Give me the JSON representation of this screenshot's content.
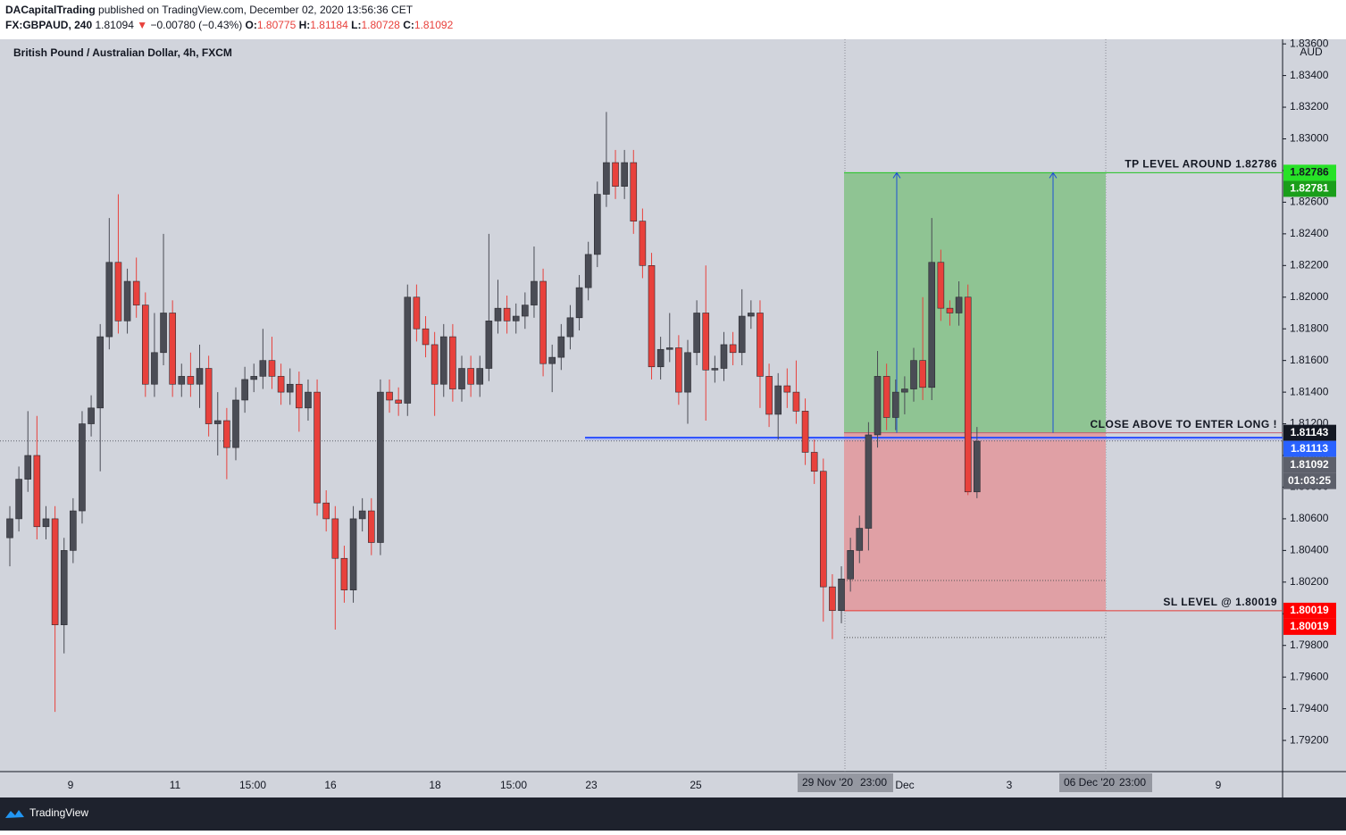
{
  "header": {
    "publisher": "DACapitalTrading",
    "published": "published on TradingView.com, December 02, 2020 13:56:36 CET",
    "symbol": "FX:GBPAUD, 240",
    "last": "1.81094",
    "arrow": "▼",
    "change": "−0.00780 (−0.43%)",
    "o_label": "O:",
    "o": "1.80775",
    "h_label": "H:",
    "h": "1.81184",
    "l_label": "L:",
    "l": "1.80728",
    "c_label": "C:",
    "c": "1.81092"
  },
  "chart_data": {
    "type": "candlestick",
    "title": "British Pound / Australian Dollar, 4h, FXCM",
    "currency": "AUD",
    "up_color": "#4a4c55",
    "down_color": "#e8413c",
    "open": [
      1.8048,
      1.806,
      1.8085,
      1.81,
      1.8055,
      1.806,
      1.7993,
      1.804,
      1.8065,
      1.812,
      1.813,
      1.8175,
      1.8222,
      1.8185,
      1.821,
      1.8195,
      1.8145,
      1.8165,
      1.819,
      1.8145,
      1.815,
      1.8145,
      1.8155,
      1.812,
      1.8122,
      1.8105,
      1.8135,
      1.8148,
      1.815,
      1.816,
      1.815,
      1.814,
      1.8145,
      1.813,
      1.814,
      1.807,
      1.806,
      1.8035,
      1.8015,
      1.806,
      1.8065,
      1.8045,
      1.814,
      1.8135,
      1.8133,
      1.82,
      1.818,
      1.817,
      1.8145,
      1.8175,
      1.8142,
      1.8155,
      1.8145,
      1.8155,
      1.8185,
      1.8193,
      1.8185,
      1.8188,
      1.8195,
      1.821,
      1.8158,
      1.8162,
      1.8175,
      1.8187,
      1.8206,
      1.8227,
      1.8265,
      1.8285,
      1.827,
      1.8285,
      1.8248,
      1.822,
      1.8156,
      1.8167,
      1.8168,
      1.814,
      1.8165,
      1.819,
      1.8154,
      1.8155,
      1.817,
      1.8165,
      1.8188,
      1.819,
      1.815,
      1.8126,
      1.8144,
      1.814,
      1.8128,
      1.8102,
      1.809,
      1.8017,
      1.8002,
      1.8022,
      1.804,
      1.8054,
      1.8113,
      1.815,
      1.8124,
      1.814,
      1.8142,
      1.816,
      1.8143,
      1.8222,
      1.8193,
      1.819,
      1.82,
      1.8077
    ],
    "high": [
      1.8068,
      1.8093,
      1.8128,
      1.8125,
      1.8068,
      1.8068,
      1.8048,
      1.8073,
      1.8128,
      1.8138,
      1.8183,
      1.825,
      1.8265,
      1.8218,
      1.8225,
      1.8203,
      1.819,
      1.824,
      1.8198,
      1.8158,
      1.8165,
      1.817,
      1.8163,
      1.814,
      1.813,
      1.8143,
      1.8156,
      1.8158,
      1.818,
      1.8175,
      1.8158,
      1.8155,
      1.8153,
      1.8148,
      1.8148,
      1.8078,
      1.8068,
      1.8043,
      1.8068,
      1.8073,
      1.8073,
      1.8148,
      1.8148,
      1.8143,
      1.8208,
      1.8208,
      1.8188,
      1.8178,
      1.8183,
      1.8183,
      1.8163,
      1.8163,
      1.8163,
      1.824,
      1.8211,
      1.8201,
      1.8196,
      1.8203,
      1.8232,
      1.8218,
      1.817,
      1.8183,
      1.8195,
      1.8214,
      1.8235,
      1.8273,
      1.8317,
      1.8293,
      1.8293,
      1.8293,
      1.8256,
      1.8228,
      1.8175,
      1.819,
      1.8176,
      1.8173,
      1.8198,
      1.822,
      1.8163,
      1.8178,
      1.8178,
      1.8205,
      1.8198,
      1.8198,
      1.8158,
      1.8152,
      1.8155,
      1.816,
      1.8136,
      1.811,
      1.8098,
      1.8025,
      1.803,
      1.8048,
      1.8062,
      1.8121,
      1.8166,
      1.8158,
      1.8148,
      1.815,
      1.8168,
      1.82,
      1.825,
      1.823,
      1.8198,
      1.821,
      1.8208,
      1.8118
    ],
    "low": [
      1.803,
      1.8052,
      1.8077,
      1.8047,
      1.8047,
      1.7938,
      1.7975,
      1.8032,
      1.8057,
      1.8112,
      1.809,
      1.8167,
      1.8177,
      1.8177,
      1.8187,
      1.8137,
      1.8137,
      1.8157,
      1.8137,
      1.8137,
      1.8137,
      1.813,
      1.8112,
      1.81,
      1.8085,
      1.8097,
      1.8127,
      1.814,
      1.8142,
      1.8142,
      1.8132,
      1.8132,
      1.8115,
      1.8122,
      1.8062,
      1.8052,
      1.799,
      1.8007,
      1.8007,
      1.8052,
      1.8037,
      1.8037,
      1.8127,
      1.8125,
      1.8125,
      1.8172,
      1.8162,
      1.8125,
      1.8137,
      1.8134,
      1.8134,
      1.8137,
      1.8137,
      1.8147,
      1.8177,
      1.8177,
      1.8177,
      1.818,
      1.8187,
      1.815,
      1.814,
      1.8154,
      1.8167,
      1.8179,
      1.8198,
      1.8219,
      1.8257,
      1.8262,
      1.8262,
      1.824,
      1.8212,
      1.8148,
      1.8148,
      1.8159,
      1.8132,
      1.812,
      1.8157,
      1.8122,
      1.8146,
      1.8147,
      1.8157,
      1.8157,
      1.818,
      1.813,
      1.8118,
      1.811,
      1.813,
      1.812,
      1.8094,
      1.8082,
      1.7995,
      1.7984,
      1.7994,
      1.8014,
      1.8032,
      1.804,
      1.8105,
      1.8116,
      1.8116,
      1.8126,
      1.8134,
      1.8135,
      1.8135,
      1.8185,
      1.8182,
      1.8182,
      1.8075,
      1.8073
    ],
    "close": [
      1.806,
      1.8085,
      1.81,
      1.8055,
      1.806,
      1.7993,
      1.804,
      1.8065,
      1.812,
      1.813,
      1.8175,
      1.8222,
      1.8185,
      1.821,
      1.8195,
      1.8145,
      1.8165,
      1.819,
      1.8145,
      1.815,
      1.8145,
      1.8155,
      1.812,
      1.8122,
      1.8105,
      1.8135,
      1.8148,
      1.815,
      1.816,
      1.815,
      1.814,
      1.8145,
      1.813,
      1.814,
      1.807,
      1.806,
      1.8035,
      1.8015,
      1.806,
      1.8065,
      1.8045,
      1.814,
      1.8135,
      1.8133,
      1.82,
      1.818,
      1.817,
      1.8145,
      1.8175,
      1.8142,
      1.8155,
      1.8145,
      1.8155,
      1.8185,
      1.8193,
      1.8185,
      1.8188,
      1.8195,
      1.821,
      1.8158,
      1.8162,
      1.8175,
      1.8187,
      1.8206,
      1.8227,
      1.8265,
      1.8285,
      1.827,
      1.8285,
      1.8248,
      1.822,
      1.8156,
      1.8167,
      1.8168,
      1.814,
      1.8165,
      1.819,
      1.8154,
      1.8155,
      1.817,
      1.8165,
      1.8188,
      1.819,
      1.815,
      1.8126,
      1.8144,
      1.814,
      1.8128,
      1.8102,
      1.809,
      1.8017,
      1.8002,
      1.8022,
      1.804,
      1.8054,
      1.8113,
      1.815,
      1.8124,
      1.814,
      1.8142,
      1.816,
      1.8143,
      1.8222,
      1.8193,
      1.819,
      1.82,
      1.8077,
      1.8109
    ],
    "ylim": [
      1.79003,
      1.83629
    ],
    "yticks": [
      {
        "value": 1.792,
        "label": "1.79200"
      },
      {
        "value": 1.794,
        "label": "1.79400"
      },
      {
        "value": 1.796,
        "label": "1.79600"
      },
      {
        "value": 1.798,
        "label": "1.79800"
      },
      {
        "value": 1.8,
        "label": "1.80000"
      },
      {
        "value": 1.802,
        "label": "1.80200"
      },
      {
        "value": 1.804,
        "label": "1.80400"
      },
      {
        "value": 1.806,
        "label": "1.80600"
      },
      {
        "value": 1.808,
        "label": "1.80800"
      },
      {
        "value": 1.81,
        "label": "1.81000"
      },
      {
        "value": 1.812,
        "label": "1.81200"
      },
      {
        "value": 1.814,
        "label": "1.81400"
      },
      {
        "value": 1.816,
        "label": "1.81600"
      },
      {
        "value": 1.818,
        "label": "1.81800"
      },
      {
        "value": 1.82,
        "label": "1.82000"
      },
      {
        "value": 1.822,
        "label": "1.82200"
      },
      {
        "value": 1.824,
        "label": "1.82400"
      },
      {
        "value": 1.826,
        "label": "1.82600"
      },
      {
        "value": 1.828,
        "label": "1.82800"
      },
      {
        "value": 1.83,
        "label": "1.83000"
      },
      {
        "value": 1.832,
        "label": "1.83200"
      },
      {
        "value": 1.834,
        "label": "1.83400"
      },
      {
        "value": 1.836,
        "label": "1.83600"
      }
    ],
    "xtick_labels": [
      "9",
      "11",
      "15:00",
      "16",
      "18",
      "15:00",
      "23",
      "25",
      "Dec",
      "3",
      "9"
    ],
    "crosshair_labels": [
      "29 Nov '20",
      "23:00",
      "06 Dec '20",
      "23:00"
    ],
    "position": {
      "tp": 1.82786,
      "entry": 1.81143,
      "sl": 1.80019,
      "tp_color": "#8fc493",
      "sl_color": "#e0a0a5",
      "zone_levels": [
        1.8021,
        1.7985
      ]
    },
    "annotations": {
      "tp": "TP LEVEL AROUND 1.82786",
      "entry": "CLOSE ABOVE TO ENTER LONG !",
      "sl": "SL LEVEL @ 1.80019"
    },
    "entry_line": 1.81113,
    "last_price": 1.81092,
    "price_markers": [
      {
        "value": 1.82786,
        "color": "#27e227",
        "text_color": "#131722"
      },
      {
        "value": 1.82781,
        "color": "#1a9e1a",
        "text_color": "#ffffff"
      },
      {
        "value": 1.81143,
        "color": "#131722",
        "text_color": "#ffffff"
      },
      {
        "value": 1.81113,
        "color": "#2962ff",
        "text_color": "#ffffff"
      },
      {
        "value": 1.81092,
        "color": "#5d606b",
        "text_color": "#ffffff"
      },
      {
        "value": 1.80019,
        "color": "#ff0000",
        "text_color": "#ffffff"
      },
      {
        "value": 1.80019,
        "color": "#ff0000",
        "text_color": "#ffffff"
      }
    ],
    "countdown": "01:03:25"
  },
  "footer": {
    "brand": "TradingView"
  }
}
